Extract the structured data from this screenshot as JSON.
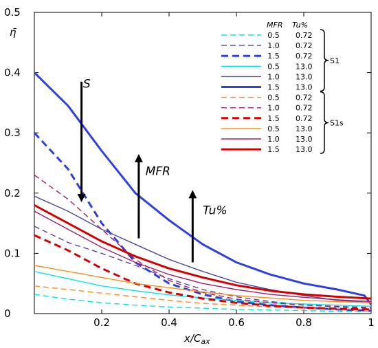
{
  "chart_data": {
    "type": "line",
    "xlabel": "x/C",
    "xlabel_sub": "ax",
    "ylabel": "η̄",
    "xlim": [
      0,
      1
    ],
    "ylim": [
      0,
      0.5
    ],
    "x_ticks": [
      "0.2",
      "0.4",
      "0.6",
      "0.8",
      "1"
    ],
    "y_ticks": [
      "0",
      "0.1",
      "0.2",
      "0.3",
      "0.4",
      "0.5"
    ],
    "legend": {
      "header_mfr": "MFR",
      "header_tu": "Tu%",
      "groups": [
        {
          "label": "S1",
          "rows": [
            0,
            5
          ]
        },
        {
          "label": "S1s",
          "rows": [
            6,
            11
          ]
        }
      ]
    },
    "series": [
      {
        "mfr": "0.5",
        "tu": "0.72",
        "color": "#00e5e5",
        "dash": "dashed",
        "width": 1.4,
        "x": [
          0,
          0.1,
          0.2,
          0.3,
          0.4,
          0.5,
          0.6,
          0.7,
          0.8,
          0.9,
          1.0
        ],
        "y": [
          0.032,
          0.024,
          0.018,
          0.014,
          0.011,
          0.009,
          0.007,
          0.006,
          0.005,
          0.004,
          0.003
        ]
      },
      {
        "mfr": "1.0",
        "tu": "0.72",
        "color": "#5a3fa8",
        "dash": "dashed",
        "width": 1.4,
        "x": [
          0,
          0.1,
          0.2,
          0.3,
          0.4,
          0.5,
          0.6,
          0.7,
          0.8,
          0.9,
          1.0
        ],
        "y": [
          0.145,
          0.118,
          0.1,
          0.08,
          0.058,
          0.04,
          0.028,
          0.02,
          0.015,
          0.011,
          0.009
        ]
      },
      {
        "mfr": "1.5",
        "tu": "0.72",
        "color": "#2d3fe0",
        "dash": "dashed",
        "width": 3,
        "x": [
          0,
          0.1,
          0.2,
          0.3,
          0.4,
          0.5,
          0.6,
          0.7,
          0.8,
          0.9,
          1.0
        ],
        "y": [
          0.3,
          0.24,
          0.15,
          0.085,
          0.05,
          0.032,
          0.02,
          0.014,
          0.01,
          0.007,
          0.005
        ]
      },
      {
        "mfr": "0.5",
        "tu": "13.0",
        "color": "#00e5e5",
        "dash": "solid",
        "width": 1.4,
        "x": [
          0,
          0.1,
          0.2,
          0.3,
          0.4,
          0.5,
          0.6,
          0.7,
          0.8,
          0.9,
          1.0
        ],
        "y": [
          0.07,
          0.058,
          0.046,
          0.038,
          0.031,
          0.026,
          0.022,
          0.018,
          0.016,
          0.014,
          0.012
        ]
      },
      {
        "mfr": "1.0",
        "tu": "13.0",
        "color": "#4a4a9e",
        "dash": "solid",
        "width": 1.4,
        "x": [
          0,
          0.1,
          0.2,
          0.3,
          0.4,
          0.5,
          0.6,
          0.7,
          0.8,
          0.9,
          1.0
        ],
        "y": [
          0.195,
          0.17,
          0.14,
          0.115,
          0.09,
          0.07,
          0.052,
          0.04,
          0.03,
          0.022,
          0.018
        ]
      },
      {
        "mfr": "1.5",
        "tu": "13.0",
        "color": "#2d3fe0",
        "dash": "solid",
        "width": 3,
        "x": [
          0,
          0.1,
          0.2,
          0.3,
          0.4,
          0.5,
          0.6,
          0.7,
          0.8,
          0.9,
          0.98,
          1.0
        ],
        "y": [
          0.4,
          0.345,
          0.27,
          0.2,
          0.155,
          0.115,
          0.085,
          0.065,
          0.05,
          0.04,
          0.03,
          0.015
        ]
      },
      {
        "mfr": "0.5",
        "tu": "0.72",
        "color": "#ff8c1a",
        "dash": "dashed",
        "width": 1.4,
        "x": [
          0,
          0.1,
          0.2,
          0.3,
          0.4,
          0.5,
          0.6,
          0.7,
          0.8,
          0.9,
          1.0
        ],
        "y": [
          0.046,
          0.04,
          0.034,
          0.028,
          0.022,
          0.017,
          0.014,
          0.011,
          0.009,
          0.008,
          0.007
        ]
      },
      {
        "mfr": "1.0",
        "tu": "0.72",
        "color": "#a0206a",
        "dash": "dashed",
        "width": 1.4,
        "x": [
          0,
          0.1,
          0.2,
          0.3,
          0.4,
          0.5,
          0.6,
          0.7,
          0.8,
          0.9,
          1.0
        ],
        "y": [
          0.23,
          0.19,
          0.14,
          0.09,
          0.055,
          0.035,
          0.024,
          0.018,
          0.014,
          0.012,
          0.01
        ]
      },
      {
        "mfr": "1.5",
        "tu": "0.72",
        "color": "#d40000",
        "dash": "dashed",
        "width": 3,
        "x": [
          0,
          0.1,
          0.2,
          0.3,
          0.4,
          0.5,
          0.6,
          0.7,
          0.8,
          0.9,
          1.0
        ],
        "y": [
          0.13,
          0.105,
          0.075,
          0.05,
          0.035,
          0.025,
          0.018,
          0.013,
          0.01,
          0.008,
          0.007
        ]
      },
      {
        "mfr": "0.5",
        "tu": "13.0",
        "color": "#ff8c1a",
        "dash": "solid",
        "width": 1.4,
        "x": [
          0,
          0.1,
          0.2,
          0.3,
          0.4,
          0.5,
          0.6,
          0.7,
          0.8,
          0.9,
          1.0
        ],
        "y": [
          0.08,
          0.07,
          0.06,
          0.05,
          0.043,
          0.036,
          0.03,
          0.026,
          0.022,
          0.02,
          0.018
        ]
      },
      {
        "mfr": "1.0",
        "tu": "13.0",
        "color": "#a0206a",
        "dash": "solid",
        "width": 1.4,
        "x": [
          0,
          0.1,
          0.2,
          0.3,
          0.4,
          0.5,
          0.6,
          0.7,
          0.8,
          0.9,
          1.0
        ],
        "y": [
          0.17,
          0.14,
          0.11,
          0.085,
          0.065,
          0.05,
          0.04,
          0.032,
          0.027,
          0.023,
          0.02
        ]
      },
      {
        "mfr": "1.5",
        "tu": "13.0",
        "color": "#d40000",
        "dash": "solid",
        "width": 3,
        "x": [
          0,
          0.1,
          0.2,
          0.3,
          0.4,
          0.5,
          0.6,
          0.7,
          0.8,
          0.9,
          1.0
        ],
        "y": [
          0.18,
          0.15,
          0.12,
          0.095,
          0.075,
          0.06,
          0.047,
          0.038,
          0.032,
          0.028,
          0.025
        ]
      }
    ],
    "annotations": [
      {
        "text": "S",
        "tx": 0.145,
        "ty": 0.375,
        "ax0": 0.14,
        "ay0": 0.385,
        "ax1": 0.14,
        "ay1": 0.185
      },
      {
        "text": "MFR",
        "tx": 0.33,
        "ty": 0.23,
        "ax0": 0.31,
        "ay0": 0.125,
        "ax1": 0.31,
        "ay1": 0.265
      },
      {
        "text": "Tu%",
        "tx": 0.5,
        "ty": 0.165,
        "ax0": 0.47,
        "ay0": 0.085,
        "ax1": 0.47,
        "ay1": 0.205
      }
    ]
  }
}
